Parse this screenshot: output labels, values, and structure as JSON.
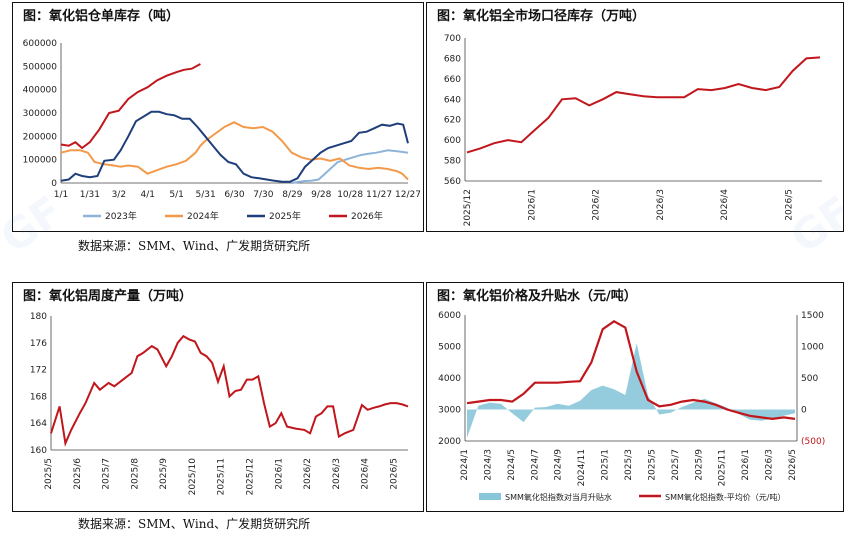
{
  "panels": {
    "p1": {
      "title": "图：氧化铝仓单库存（吨）"
    },
    "p2": {
      "title": "图：氧化铝全市场口径库存（万吨）"
    },
    "p3": {
      "title": "图：氧化铝周度产量（万吨）"
    },
    "p4": {
      "title": "图：氧化铝价格及升贴水（元/吨）"
    }
  },
  "sources": {
    "top": "数据来源：SMM、Wind、广发期货研究所",
    "bottom": "数据来源：SMM、Wind、广发期货研究所"
  },
  "chart_data": [
    {
      "type": "line",
      "title": "图：氧化铝仓单库存（吨）",
      "x_ticks": [
        "1/1",
        "1/31",
        "3/2",
        "4/1",
        "5/1",
        "5/31",
        "6/30",
        "7/30",
        "8/29",
        "9/28",
        "10/28",
        "11/27",
        "12/27"
      ],
      "ylim": [
        0,
        600000
      ],
      "y_ticks": [
        "0",
        "100000",
        "200000",
        "300000",
        "400000",
        "500000",
        "600000"
      ],
      "legend_position": "bottom",
      "colors": {
        "2023年": "#8fb4d9",
        "2024年": "#f39a4a",
        "2025年": "#1f3f7a",
        "2026年": "#c0161c"
      },
      "series": [
        {
          "name": "2023年",
          "x": [
            240,
            248,
            252,
            260,
            268,
            272,
            280,
            288,
            296,
            304,
            312,
            320,
            328,
            340,
            352,
            361
          ],
          "y": [
            0,
            5000,
            8000,
            10000,
            15000,
            30000,
            60000,
            90000,
            100000,
            110000,
            120000,
            125000,
            130000,
            140000,
            135000,
            130000
          ]
        },
        {
          "name": "2024年",
          "x": [
            0,
            10,
            20,
            28,
            35,
            45,
            55,
            62,
            70,
            80,
            90,
            100,
            110,
            120,
            130,
            140,
            145,
            150,
            160,
            170,
            180,
            190,
            200,
            210,
            220,
            230,
            240,
            250,
            260,
            270,
            280,
            290,
            300,
            310,
            320,
            330,
            340,
            350,
            355,
            361
          ],
          "y": [
            130000,
            140000,
            140000,
            130000,
            90000,
            80000,
            75000,
            70000,
            75000,
            70000,
            40000,
            55000,
            70000,
            80000,
            95000,
            130000,
            160000,
            180000,
            210000,
            240000,
            260000,
            240000,
            235000,
            240000,
            220000,
            180000,
            130000,
            110000,
            100000,
            105000,
            95000,
            105000,
            75000,
            65000,
            60000,
            65000,
            60000,
            50000,
            40000,
            15000
          ]
        },
        {
          "name": "2025年",
          "x": [
            0,
            8,
            15,
            22,
            30,
            38,
            45,
            55,
            62,
            70,
            78,
            86,
            94,
            102,
            110,
            118,
            126,
            134,
            142,
            150,
            158,
            166,
            174,
            182,
            190,
            198,
            206,
            214,
            222,
            230,
            238,
            246,
            254,
            262,
            270,
            278,
            286,
            294,
            302,
            310,
            318,
            326,
            334,
            342,
            350,
            356,
            361
          ],
          "y": [
            10000,
            15000,
            40000,
            30000,
            25000,
            30000,
            95000,
            100000,
            140000,
            200000,
            265000,
            285000,
            305000,
            305000,
            295000,
            290000,
            275000,
            275000,
            240000,
            200000,
            160000,
            120000,
            90000,
            80000,
            40000,
            25000,
            20000,
            15000,
            10000,
            5000,
            5000,
            20000,
            70000,
            100000,
            130000,
            150000,
            160000,
            170000,
            180000,
            215000,
            220000,
            235000,
            250000,
            245000,
            255000,
            250000,
            170000
          ]
        },
        {
          "name": "2026年",
          "x": [
            0,
            8,
            15,
            22,
            30,
            40,
            50,
            60,
            70,
            80,
            90,
            100,
            110,
            120,
            128,
            136,
            145
          ],
          "y": [
            165000,
            160000,
            175000,
            150000,
            175000,
            230000,
            300000,
            310000,
            360000,
            390000,
            410000,
            440000,
            460000,
            475000,
            485000,
            490000,
            510000
          ]
        }
      ]
    },
    {
      "type": "line",
      "title": "图：氧化铝全市场口径库存（万吨）",
      "x_ticks": [
        "2025/12",
        "2026/1",
        "2026/2",
        "2026/3",
        "2026/4",
        "2026/5"
      ],
      "ylim": [
        560,
        700
      ],
      "y_ticks": [
        "560",
        "580",
        "600",
        "620",
        "640",
        "660",
        "680",
        "700"
      ],
      "color": "#c0161c",
      "series": [
        {
          "x": [
            0,
            1,
            2,
            3,
            4,
            5,
            6,
            7,
            8,
            9,
            10,
            11,
            12,
            13,
            14,
            15,
            16,
            17,
            18,
            19,
            20,
            21,
            22,
            23,
            24,
            25,
            26
          ],
          "y": [
            588,
            592,
            597,
            600,
            598,
            610,
            622,
            640,
            641,
            634,
            640,
            647,
            645,
            643,
            642,
            642,
            642,
            650,
            649,
            651,
            655,
            651,
            649,
            652,
            668,
            680,
            681
          ]
        }
      ]
    },
    {
      "type": "line",
      "title": "图：氧化铝周度产量（万吨）",
      "x_ticks": [
        "2025/5",
        "2025/6",
        "2025/7",
        "2025/8",
        "2025/9",
        "2025/10",
        "2025/11",
        "2025/12",
        "2026/1",
        "2026/2",
        "2026/3",
        "2026/4",
        "2026/5"
      ],
      "ylim": [
        160,
        180
      ],
      "y_ticks": [
        "160",
        "164",
        "168",
        "172",
        "176",
        "180"
      ],
      "color": "#c0161c",
      "series": [
        {
          "x": [
            0,
            0.3,
            0.5,
            0.7,
            1,
            1.2,
            1.5,
            1.7,
            2,
            2.2,
            2.5,
            2.8,
            3,
            3.2,
            3.5,
            3.7,
            4,
            4.2,
            4.4,
            4.6,
            4.8,
            5,
            5.2,
            5.4,
            5.6,
            5.8,
            6,
            6.2,
            6.4,
            6.6,
            6.8,
            7,
            7.2,
            7.4,
            7.6,
            7.8,
            8,
            8.2,
            8.5,
            8.8,
            9,
            9.2,
            9.4,
            9.6,
            9.8,
            10,
            10.2,
            10.5,
            10.8,
            11,
            11.2,
            11.4,
            11.6,
            11.8,
            12,
            12.2,
            12.4
          ],
          "y": [
            162.5,
            166.5,
            161,
            163,
            165.5,
            167,
            170,
            169,
            170,
            169.5,
            170.5,
            171.5,
            174,
            174.5,
            175.5,
            175,
            172.5,
            174,
            176,
            177,
            176.5,
            176.2,
            174.5,
            174,
            173,
            170.2,
            172.5,
            168,
            168.8,
            169,
            170.5,
            170.5,
            171,
            167,
            163.5,
            164,
            165.5,
            163.5,
            163.2,
            163,
            162.5,
            165,
            165.5,
            166.5,
            166.5,
            162,
            162.5,
            163,
            166.7,
            166,
            166.3,
            166.5,
            166.8,
            167,
            167,
            166.8,
            166.5
          ]
        }
      ]
    },
    {
      "type": "area",
      "title": "图：氧化铝价格及升贴水（元/吨）",
      "x_ticks": [
        "2024/1",
        "2024/3",
        "2024/5",
        "2024/7",
        "2024/9",
        "2024/11",
        "2025/1",
        "2025/3",
        "2025/5",
        "2025/7",
        "2025/9",
        "2025/11",
        "2026/1",
        "2026/3",
        "2026/5"
      ],
      "ylim_left": [
        2000,
        6000
      ],
      "y_ticks_left": [
        "2000",
        "3000",
        "4000",
        "5000",
        "6000"
      ],
      "ylim_right": [
        -500,
        1500
      ],
      "y_ticks_right": [
        "(500)",
        "0",
        "500",
        "1000",
        "1500"
      ],
      "legend_position": "bottom",
      "series": [
        {
          "name": "SMM氧化铝指数对当月升贴水",
          "axis": "right",
          "color": "#8ac6d9",
          "x": [
            0,
            1,
            2,
            3,
            4,
            5,
            6,
            7,
            8,
            9,
            10,
            11,
            12,
            13,
            14,
            15,
            16,
            17,
            18,
            19,
            20,
            21,
            22,
            23,
            24,
            25,
            26,
            27,
            28,
            29
          ],
          "y": [
            -450,
            60,
            110,
            90,
            -60,
            -200,
            30,
            40,
            90,
            60,
            140,
            310,
            380,
            320,
            230,
            1050,
            220,
            -80,
            -50,
            40,
            110,
            170,
            100,
            30,
            -70,
            -160,
            -180,
            -150,
            -100,
            -60
          ]
        },
        {
          "name": "SMM氧化铝指数-平均价（元/吨）",
          "axis": "left",
          "color": "#c0161c",
          "x": [
            0,
            1,
            2,
            3,
            4,
            5,
            6,
            7,
            8,
            9,
            10,
            11,
            12,
            13,
            14,
            15,
            16,
            17,
            18,
            19,
            20,
            21,
            22,
            23,
            24,
            25,
            26,
            27,
            28,
            29
          ],
          "y": [
            3200,
            3250,
            3300,
            3300,
            3250,
            3500,
            3850,
            3850,
            3850,
            3880,
            3900,
            4500,
            5550,
            5800,
            5600,
            4200,
            3300,
            3100,
            3150,
            3250,
            3300,
            3250,
            3150,
            3000,
            2900,
            2800,
            2750,
            2700,
            2750,
            2700
          ]
        }
      ]
    }
  ]
}
